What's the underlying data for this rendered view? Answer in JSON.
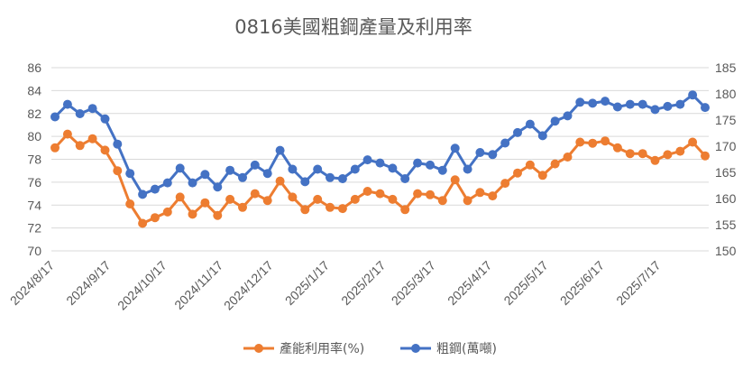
{
  "chart_data": {
    "type": "line",
    "title": "0816美國粗鋼產量及利用率",
    "categories": [
      "2024/8/17",
      "2024/8/24",
      "2024/8/31",
      "2024/9/7",
      "2024/9/14",
      "2024/9/21",
      "2024/9/28",
      "2024/10/5",
      "2024/10/12",
      "2024/10/19",
      "2024/10/26",
      "2024/11/2",
      "2024/11/9",
      "2024/11/16",
      "2024/11/23",
      "2024/11/30",
      "2024/12/7",
      "2024/12/14",
      "2024/12/21",
      "2024/12/28",
      "2025/1/4",
      "2025/1/11",
      "2025/1/18",
      "2025/1/25",
      "2025/2/1",
      "2025/2/8",
      "2025/2/15",
      "2025/2/22",
      "2025/3/1",
      "2025/3/8",
      "2025/3/15",
      "2025/3/22",
      "2025/3/29",
      "2025/4/5",
      "2025/4/12",
      "2025/4/19",
      "2025/4/26",
      "2025/5/3",
      "2025/5/10",
      "2025/5/17",
      "2025/5/24",
      "2025/5/31",
      "2025/6/7",
      "2025/6/14",
      "2025/6/21",
      "2025/6/28",
      "2025/7/5",
      "2025/7/12",
      "2025/7/19",
      "2025/7/26",
      "2025/8/2",
      "2025/8/9",
      "2025/8/16"
    ],
    "x_tick_labels": [
      "2024/8/17",
      "2024/9/17",
      "2024/10/17",
      "2024/11/17",
      "2024/12/17",
      "2025/1/17",
      "2025/2/17",
      "2025/3/17",
      "2025/4/17",
      "2025/5/17",
      "2025/6/17",
      "2025/7/17"
    ],
    "x_tick_indices": [
      0,
      4.5,
      9,
      13.5,
      17.5,
      22,
      26.5,
      30.5,
      35,
      39.5,
      44,
      48.5
    ],
    "series": [
      {
        "name": "產能利用率(%)",
        "axis": "left",
        "color": "#ED7D31",
        "values": [
          79.0,
          80.2,
          79.2,
          79.8,
          78.8,
          77.0,
          74.1,
          72.4,
          72.9,
          73.4,
          74.7,
          73.2,
          74.2,
          73.1,
          74.5,
          73.8,
          75.0,
          74.4,
          76.1,
          74.7,
          73.6,
          74.5,
          73.8,
          73.7,
          74.5,
          75.2,
          75.0,
          74.5,
          73.6,
          75.0,
          74.9,
          74.4,
          76.2,
          74.4,
          75.1,
          74.8,
          75.9,
          76.8,
          77.5,
          76.6,
          77.6,
          78.2,
          79.5,
          79.4,
          79.6,
          79.0,
          78.5,
          78.5,
          77.9,
          78.4,
          78.7,
          79.5,
          78.3
        ]
      },
      {
        "name": "粗鋼(萬噸)",
        "axis": "right",
        "color": "#4472C4",
        "values": [
          175.6,
          178.0,
          176.2,
          177.2,
          175.2,
          170.4,
          164.8,
          160.8,
          161.8,
          163.0,
          165.8,
          163.0,
          164.6,
          162.2,
          165.4,
          164.0,
          166.4,
          164.8,
          169.2,
          165.6,
          163.2,
          165.6,
          164.0,
          163.8,
          165.6,
          167.4,
          166.8,
          165.8,
          163.8,
          166.8,
          166.4,
          165.4,
          169.6,
          165.6,
          168.8,
          168.4,
          170.6,
          172.6,
          174.2,
          172.0,
          174.8,
          175.8,
          178.4,
          178.2,
          178.6,
          177.5,
          178.0,
          178.0,
          177.0,
          177.6,
          178.0,
          179.8,
          177.4
        ]
      }
    ],
    "y_left": {
      "min": 70,
      "max": 86,
      "ticks": [
        70,
        72,
        74,
        76,
        78,
        80,
        82,
        84,
        86
      ]
    },
    "y_right": {
      "min": 150,
      "max": 185,
      "ticks": [
        150,
        155,
        160,
        165,
        170,
        175,
        180,
        185
      ]
    },
    "grid": true,
    "legend_position": "bottom"
  }
}
